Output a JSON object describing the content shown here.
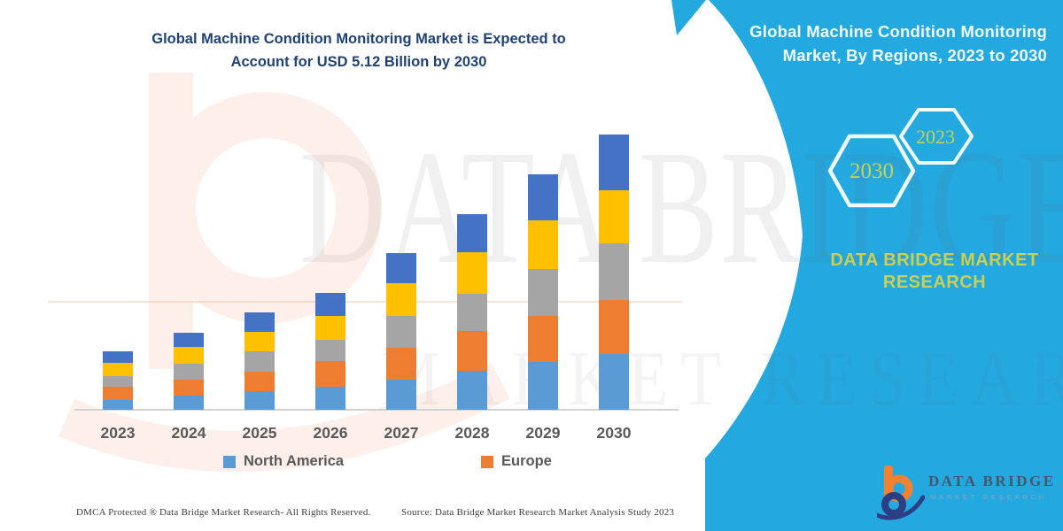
{
  "main_title": {
    "line1": "Global Machine Condition Monitoring Market is Expected to",
    "line2": "Account for USD 5.12 Billion by 2030"
  },
  "right_panel": {
    "background_color": "#23A8DF",
    "title_line1": "Global Machine Condition Monitoring",
    "title_line2": "Market, By Regions, 2023 to 2030",
    "hexagon_large_label": "2030",
    "hexagon_small_label": "2023",
    "brand_line1": "DATA BRIDGE MARKET",
    "brand_line2": "RESEARCH",
    "accent_text_color": "#C9D052"
  },
  "chart_data": {
    "type": "bar",
    "subtype": "stacked-column",
    "title": "Global Machine Condition Monitoring Market is Expected to Account for USD 5.12 Billion by 2030",
    "xlabel": "",
    "ylabel": "",
    "unit": "USD Billion",
    "values_estimated_from_pixels": true,
    "grid": false,
    "value_axis_shown": false,
    "legend_position": "bottom",
    "legend": [
      "North America",
      "Europe"
    ],
    "categories": [
      "2023",
      "2024",
      "2025",
      "2026",
      "2027",
      "2028",
      "2029",
      "2030"
    ],
    "totals": [
      1.09,
      1.43,
      1.81,
      2.18,
      2.91,
      3.63,
      4.39,
      5.12
    ],
    "series": [
      {
        "name": "North America",
        "labeled_in_legend": true,
        "color": "#5B9BD5",
        "values": [
          0.18,
          0.26,
          0.35,
          0.43,
          0.56,
          0.72,
          0.89,
          1.04
        ]
      },
      {
        "name": "Europe",
        "labeled_in_legend": true,
        "color": "#ED7D31",
        "values": [
          0.25,
          0.3,
          0.36,
          0.48,
          0.59,
          0.74,
          0.86,
          1.0
        ]
      },
      {
        "name": "unlabeled-region-gray",
        "labeled_in_legend": false,
        "color": "#A5A5A5",
        "values": [
          0.2,
          0.3,
          0.38,
          0.4,
          0.59,
          0.69,
          0.87,
          1.05
        ]
      },
      {
        "name": "unlabeled-region-yellow",
        "labeled_in_legend": false,
        "color": "#FFC000",
        "values": [
          0.25,
          0.31,
          0.36,
          0.44,
          0.61,
          0.77,
          0.91,
          0.99
        ]
      },
      {
        "name": "unlabeled-region-darkblue",
        "labeled_in_legend": false,
        "color": "#4472C4",
        "values": [
          0.21,
          0.26,
          0.36,
          0.43,
          0.56,
          0.71,
          0.86,
          1.04
        ]
      }
    ]
  },
  "watermark": {
    "line1": "DATA BRIDGE",
    "line2": "MARKET RESEARCH"
  },
  "logo": {
    "name": "DATA BRIDGE",
    "subtitle": "MARKET RESEARCH"
  },
  "footer": {
    "left": "DMCA Protected ® Data Bridge Market Research-  All Rights Reserved.",
    "right": "Source: Data Bridge Market Research  Market Analysis Study 2023"
  }
}
